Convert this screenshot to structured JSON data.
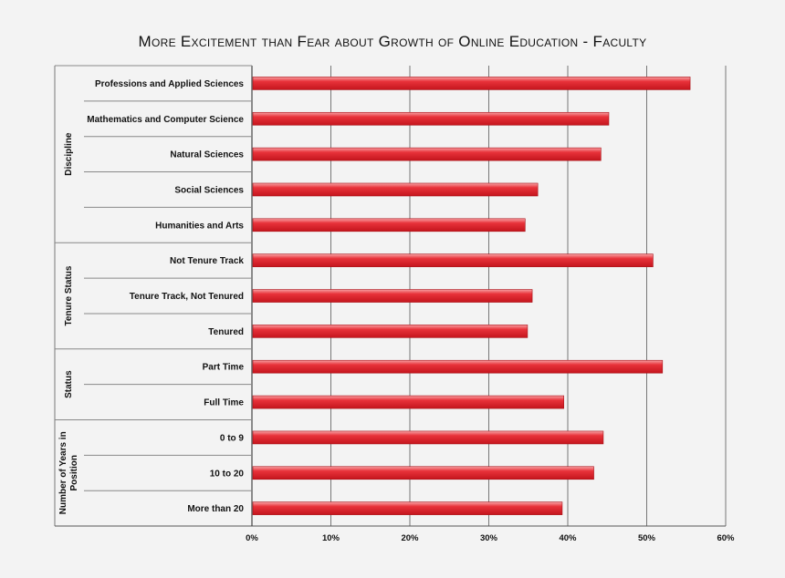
{
  "chart_data": {
    "type": "bar",
    "orientation": "horizontal",
    "title": "More Excitement than Fear about Growth of Online Education - Faculty",
    "xlabel": "",
    "ylabel": "",
    "xlim": [
      0,
      60
    ],
    "x_ticks": [
      "0%",
      "10%",
      "20%",
      "30%",
      "40%",
      "50%",
      "60%"
    ],
    "x_tick_values": [
      0,
      10,
      20,
      30,
      40,
      50,
      60
    ],
    "grid": "vertical gridlines",
    "bar_color": "#e2222b",
    "groups": [
      {
        "name": "Discipline",
        "categories": [
          "Professions and Applied Sciences",
          "Mathematics and Computer Science",
          "Natural Sciences",
          "Social Sciences",
          "Humanities and Arts"
        ],
        "values": [
          55.5,
          45.2,
          44.2,
          36.2,
          34.6
        ]
      },
      {
        "name": "Tenure Status",
        "categories": [
          "Not Tenure Track",
          "Tenure Track, Not Tenured",
          "Tenured"
        ],
        "values": [
          50.8,
          35.5,
          34.9
        ]
      },
      {
        "name": "Status",
        "categories": [
          "Part Time",
          "Full Time"
        ],
        "values": [
          52.0,
          39.5
        ]
      },
      {
        "name": "Number of Years in Position",
        "categories": [
          "0 to 9",
          "10 to 20",
          "More than 20"
        ],
        "values": [
          44.5,
          43.3,
          39.3
        ]
      }
    ]
  }
}
